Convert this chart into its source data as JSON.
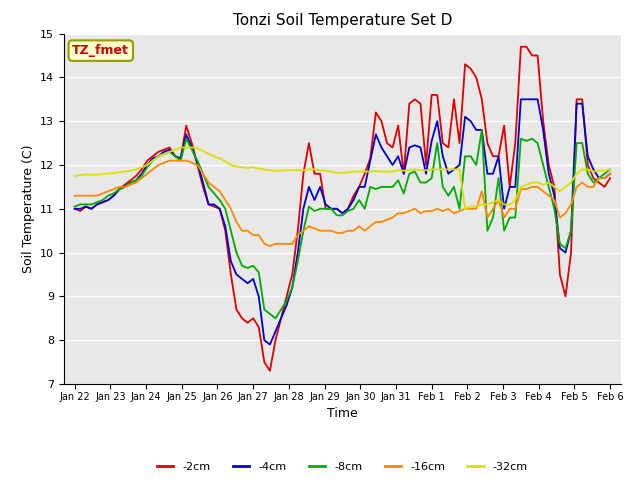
{
  "title": "Tonzi Soil Temperature Set D",
  "xlabel": "Time",
  "ylabel": "Soil Temperature (C)",
  "ylim": [
    7.0,
    15.0
  ],
  "yticks": [
    7.0,
    8.0,
    9.0,
    10.0,
    11.0,
    12.0,
    13.0,
    14.0,
    15.0
  ],
  "legend_labels": [
    "-2cm",
    "-4cm",
    "-8cm",
    "-16cm",
    "-32cm"
  ],
  "legend_colors": [
    "#dd0000",
    "#0000cc",
    "#00aa00",
    "#ff8800",
    "#dddd00"
  ],
  "annotation_text": "TZ_fmet",
  "annotation_color": "#cc0000",
  "annotation_bg": "#ffffcc",
  "annotation_border": "#999900",
  "bg_color": "#e8e8e8",
  "xtick_labels": [
    "Jan 22",
    "Jan 23",
    "Jan 24",
    "Jan 25",
    "Jan 26",
    "Jan 27",
    "Jan 28",
    "Jan 29",
    "Jan 30",
    "Jan 31",
    "Feb 1",
    "Feb 2",
    "Feb 3",
    "Feb 4",
    "Feb 5",
    "Feb 6"
  ],
  "line_width": 1.3,
  "series": {
    "neg2cm": [
      11.0,
      10.95,
      11.05,
      11.0,
      11.1,
      11.15,
      11.2,
      11.3,
      11.45,
      11.55,
      11.65,
      11.75,
      11.9,
      12.1,
      12.2,
      12.3,
      12.35,
      12.4,
      12.2,
      12.15,
      12.9,
      12.5,
      12.0,
      11.5,
      11.1,
      11.05,
      11.0,
      10.5,
      9.5,
      8.7,
      8.5,
      8.4,
      8.5,
      8.3,
      7.5,
      7.3,
      8.0,
      8.5,
      9.0,
      9.5,
      10.5,
      11.8,
      12.5,
      11.8,
      11.8,
      11.0,
      11.0,
      11.0,
      10.9,
      11.0,
      11.3,
      11.5,
      11.8,
      12.15,
      13.2,
      13.0,
      12.5,
      12.4,
      12.9,
      11.8,
      13.4,
      13.5,
      13.4,
      12.0,
      13.6,
      13.6,
      12.5,
      12.4,
      13.5,
      12.5,
      14.3,
      14.2,
      14.0,
      13.5,
      12.5,
      12.2,
      12.2,
      12.9,
      11.5,
      12.5,
      14.7,
      14.7,
      14.5,
      14.5,
      13.0,
      12.0,
      11.5,
      9.5,
      9.0,
      10.0,
      13.5,
      13.5,
      12.0,
      11.7,
      11.6,
      11.5,
      11.7
    ],
    "neg4cm": [
      11.0,
      11.0,
      11.05,
      11.0,
      11.1,
      11.15,
      11.2,
      11.3,
      11.45,
      11.5,
      11.6,
      11.65,
      11.8,
      12.0,
      12.15,
      12.2,
      12.3,
      12.35,
      12.2,
      12.15,
      12.7,
      12.4,
      12.05,
      11.6,
      11.1,
      11.1,
      11.0,
      10.6,
      9.8,
      9.5,
      9.4,
      9.3,
      9.4,
      9.0,
      8.0,
      7.9,
      8.2,
      8.5,
      8.8,
      9.2,
      10.0,
      11.0,
      11.5,
      11.2,
      11.5,
      11.1,
      11.0,
      11.0,
      10.9,
      11.0,
      11.2,
      11.5,
      11.5,
      12.1,
      12.7,
      12.4,
      12.2,
      12.0,
      12.2,
      11.8,
      12.4,
      12.45,
      12.4,
      11.8,
      12.55,
      13.0,
      12.2,
      11.8,
      11.9,
      12.0,
      13.1,
      13.0,
      12.8,
      12.8,
      11.8,
      11.8,
      12.2,
      11.0,
      11.5,
      11.5,
      13.5,
      13.5,
      13.5,
      13.5,
      12.8,
      11.8,
      11.3,
      10.1,
      10.0,
      10.5,
      13.4,
      13.4,
      12.2,
      11.9,
      11.7,
      11.7,
      11.8
    ],
    "neg8cm": [
      11.05,
      11.1,
      11.1,
      11.1,
      11.15,
      11.2,
      11.3,
      11.35,
      11.45,
      11.5,
      11.6,
      11.65,
      11.75,
      11.95,
      12.1,
      12.2,
      12.25,
      12.3,
      12.2,
      12.1,
      12.6,
      12.35,
      12.1,
      11.8,
      11.5,
      11.35,
      11.2,
      11.0,
      10.5,
      10.0,
      9.7,
      9.65,
      9.7,
      9.55,
      8.7,
      8.6,
      8.5,
      8.7,
      8.9,
      9.2,
      9.8,
      10.5,
      11.05,
      10.95,
      11.0,
      11.0,
      11.0,
      10.85,
      10.85,
      10.95,
      11.0,
      11.2,
      11.0,
      11.5,
      11.45,
      11.5,
      11.5,
      11.5,
      11.65,
      11.35,
      11.8,
      11.85,
      11.6,
      11.6,
      11.7,
      12.5,
      11.5,
      11.3,
      11.5,
      11.0,
      12.2,
      12.2,
      12.0,
      12.8,
      10.5,
      10.8,
      11.7,
      10.5,
      10.8,
      10.8,
      12.6,
      12.55,
      12.6,
      12.5,
      12.0,
      11.5,
      11.0,
      10.2,
      10.1,
      10.5,
      12.5,
      12.5,
      11.8,
      11.6,
      11.7,
      11.8,
      11.9
    ],
    "neg16cm": [
      11.3,
      11.3,
      11.3,
      11.3,
      11.3,
      11.35,
      11.4,
      11.45,
      11.5,
      11.5,
      11.55,
      11.6,
      11.7,
      11.8,
      11.9,
      12.0,
      12.05,
      12.1,
      12.1,
      12.1,
      12.1,
      12.05,
      12.0,
      11.8,
      11.6,
      11.5,
      11.4,
      11.2,
      11.0,
      10.7,
      10.5,
      10.5,
      10.4,
      10.4,
      10.2,
      10.15,
      10.2,
      10.2,
      10.2,
      10.2,
      10.4,
      10.5,
      10.6,
      10.55,
      10.5,
      10.5,
      10.5,
      10.45,
      10.45,
      10.5,
      10.5,
      10.6,
      10.5,
      10.6,
      10.7,
      10.7,
      10.75,
      10.8,
      10.9,
      10.9,
      10.95,
      11.0,
      10.9,
      10.95,
      10.95,
      11.0,
      10.95,
      11.0,
      10.9,
      10.95,
      11.0,
      11.0,
      11.0,
      11.4,
      10.8,
      11.0,
      11.2,
      10.8,
      11.0,
      11.0,
      11.45,
      11.45,
      11.5,
      11.5,
      11.4,
      11.3,
      11.2,
      10.8,
      10.9,
      11.1,
      11.5,
      11.6,
      11.5,
      11.5,
      11.7,
      11.7,
      11.8
    ],
    "neg32cm": [
      11.75,
      11.77,
      11.78,
      11.78,
      11.78,
      11.8,
      11.8,
      11.82,
      11.83,
      11.85,
      11.87,
      11.9,
      11.95,
      12.0,
      12.1,
      12.2,
      12.25,
      12.3,
      12.35,
      12.4,
      12.4,
      12.4,
      12.38,
      12.32,
      12.25,
      12.2,
      12.15,
      12.08,
      12.0,
      11.97,
      11.95,
      11.93,
      11.95,
      11.92,
      11.9,
      11.88,
      11.87,
      11.87,
      11.88,
      11.88,
      11.88,
      11.88,
      11.9,
      11.9,
      11.88,
      11.87,
      11.85,
      11.82,
      11.82,
      11.83,
      11.85,
      11.85,
      11.85,
      11.85,
      11.86,
      11.85,
      11.85,
      11.85,
      11.88,
      11.87,
      11.88,
      11.9,
      11.88,
      11.88,
      11.9,
      11.9,
      11.9,
      11.9,
      11.9,
      11.9,
      11.0,
      11.05,
      11.05,
      11.1,
      11.1,
      11.15,
      11.2,
      11.1,
      11.1,
      11.2,
      11.5,
      11.55,
      11.6,
      11.6,
      11.55,
      11.6,
      11.5,
      11.4,
      11.5,
      11.6,
      11.8,
      11.9,
      11.9,
      11.85,
      11.87,
      11.87,
      11.9
    ]
  }
}
